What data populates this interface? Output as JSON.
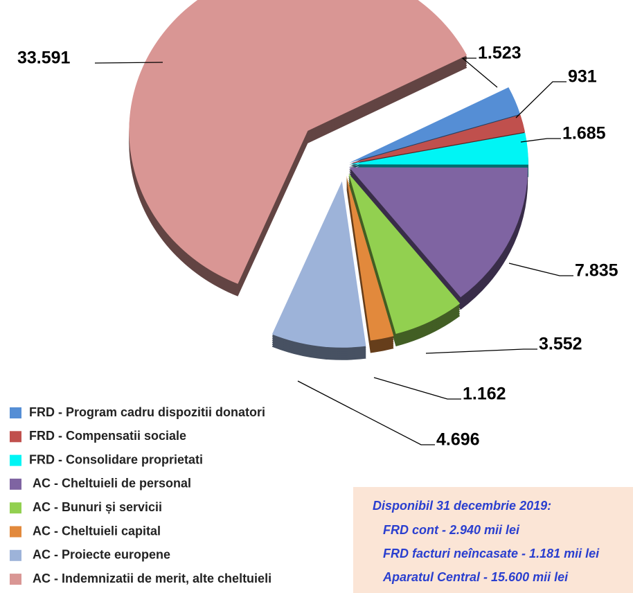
{
  "chart_data": {
    "type": "pie",
    "categories": [
      "FRD - Program cadru dispozitii donatori",
      "FRD - Compensatii sociale",
      "FRD - Consolidare proprietati",
      "AC - Cheltuieli de personal",
      "AC - Bunuri și servicii",
      "AC - Cheltuieli capital",
      "AC - Proiecte europene",
      "AC - Indemnizatii de merit, alte cheltuieli"
    ],
    "values": [
      1523,
      931,
      1685,
      7835,
      3552,
      1162,
      4696,
      33591
    ],
    "value_labels": [
      "1.523",
      "931",
      "1.685",
      "7.835",
      "3.552",
      "1.162",
      "4.696",
      "33.591"
    ],
    "colors": [
      "#558ed5",
      "#c0504d",
      "#00f5f5",
      "#7f64a2",
      "#92d050",
      "#e2893c",
      "#9db3d9",
      "#d99694"
    ],
    "annotation": {
      "title": "Disponibil  31 decembrie 2019:",
      "lines": [
        "FRD cont - 2.940  mii lei",
        "FRD facturi neîncasate - 1.181  mii lei",
        "Aparatul Central - 15.600  mii lei"
      ]
    }
  }
}
